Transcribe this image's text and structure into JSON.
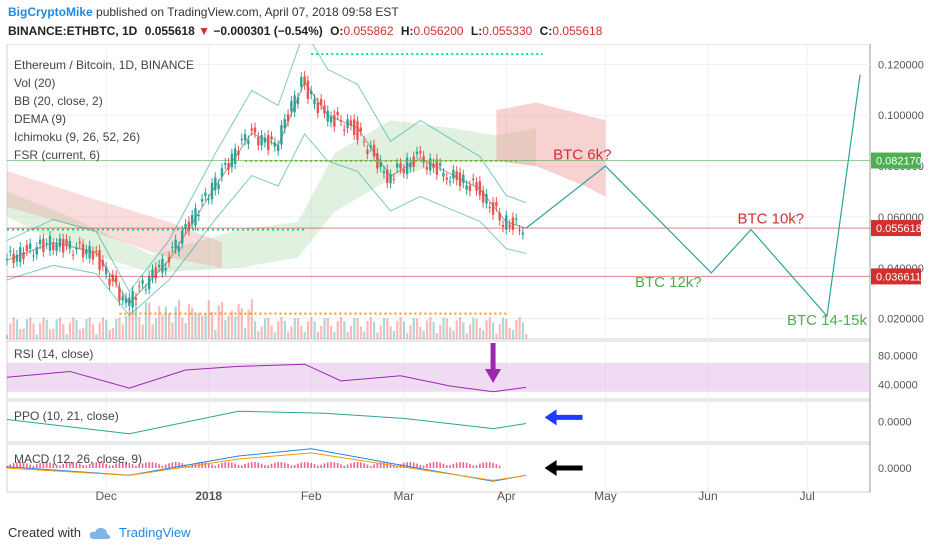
{
  "header": {
    "author": "BigCryptoMike",
    "published": "published on TradingView.com, April 07, 2018 09:58 EST",
    "symbol": "BINANCE:ETHBTC, 1D",
    "last": "0.055618",
    "change_arrow": "▼",
    "change": "−0.000301 (−0.54%)",
    "o_label": "O:",
    "o": "0.055862",
    "h_label": "H:",
    "h": "0.056200",
    "l_label": "L:",
    "l": "0.055330",
    "c_label": "C:",
    "c": "0.055618"
  },
  "indicators": [
    "Ethereum / Bitcoin, 1D, BINANCE",
    "Vol (20)",
    "BB (20, close, 2)",
    "DEMA (9)",
    "Ichimoku (9, 26, 52, 26)",
    "FSR (current, 6)"
  ],
  "footer": {
    "created_with": "Created with",
    "brand": "TradingView"
  },
  "colors": {
    "up": "#26a69a",
    "down": "#ef5350",
    "accent": "#1e88e5",
    "rsi": "#9c27b0"
  },
  "chart_data": {
    "type": "line",
    "symbol": "ETHBTC",
    "x_ticks": [
      "Dec",
      "2018",
      "Feb",
      "Mar",
      "Apr",
      "May",
      "Jun",
      "Jul"
    ],
    "y_ticks": [
      "0.120000",
      "0.100000",
      "0.080000",
      "0.060000",
      "0.040000",
      "0.020000"
    ],
    "ylim": [
      0.012,
      0.128
    ],
    "price_series": {
      "name": "ETHBTC",
      "dates": [
        "2017-11-01",
        "2017-11-15",
        "2017-11-28",
        "2017-12-08",
        "2017-12-20",
        "2018-01-03",
        "2018-01-14",
        "2018-01-22",
        "2018-01-30",
        "2018-02-06",
        "2018-02-15",
        "2018-02-25",
        "2018-03-06",
        "2018-03-15",
        "2018-03-24",
        "2018-04-01",
        "2018-04-07"
      ],
      "values": [
        0.043,
        0.05,
        0.046,
        0.026,
        0.043,
        0.072,
        0.093,
        0.088,
        0.113,
        0.1,
        0.095,
        0.076,
        0.083,
        0.077,
        0.071,
        0.058,
        0.0556
      ]
    },
    "horizontal_levels": [
      {
        "value": 0.08217,
        "label": "0.082170",
        "color": "#4caf50"
      },
      {
        "value": 0.055618,
        "label": "0.055618",
        "color": "#d32f2f"
      },
      {
        "value": 0.036611,
        "label": "0.036611",
        "color": "#d32f2f"
      }
    ],
    "projection": {
      "dates": [
        "2018-04-07",
        "2018-05-01",
        "2018-06-02",
        "2018-06-14",
        "2018-07-07",
        "2018-07-17"
      ],
      "values": [
        0.0556,
        0.08,
        0.038,
        0.055,
        0.021,
        0.116
      ]
    },
    "annotations": [
      {
        "text": "BTC 6k?",
        "date": "2018-04-24",
        "value": 0.0825,
        "color": "#d32f2f"
      },
      {
        "text": "BTC 10k?",
        "date": "2018-06-20",
        "value": 0.0575,
        "color": "#d32f2f"
      },
      {
        "text": "BTC 12k?",
        "date": "2018-05-20",
        "value": 0.0325,
        "color": "#4caf50"
      },
      {
        "text": "BTC 14-15k",
        "date": "2018-07-07",
        "value": 0.0175,
        "color": "#4caf50"
      }
    ],
    "rsi": {
      "label": "RSI (14, close)",
      "y_ticks": [
        "80.0000",
        "40.0000"
      ],
      "ylim": [
        20,
        100
      ],
      "band": [
        30,
        70
      ],
      "dates": [
        "2017-11-01",
        "2017-11-20",
        "2017-12-08",
        "2017-12-25",
        "2018-01-10",
        "2018-01-30",
        "2018-02-10",
        "2018-02-28",
        "2018-03-15",
        "2018-03-28",
        "2018-04-07"
      ],
      "values": [
        50,
        58,
        35,
        60,
        65,
        68,
        45,
        52,
        38,
        30,
        36
      ]
    },
    "ppo": {
      "label": "PPO (10, 21, close)",
      "y_ticks": [
        "0.0000"
      ],
      "ylim": [
        -1,
        1
      ],
      "dates": [
        "2017-11-01",
        "2017-12-08",
        "2018-01-10",
        "2018-02-05",
        "2018-03-01",
        "2018-03-28",
        "2018-04-07"
      ],
      "values": [
        0.1,
        -0.6,
        0.5,
        0.4,
        0.15,
        -0.35,
        -0.1
      ]
    },
    "macd": {
      "label": "MACD (12, 26, close, 9)",
      "y_ticks": [
        "0.0000"
      ],
      "ylim": [
        -1,
        1
      ],
      "dates": [
        "2017-11-01",
        "2017-12-08",
        "2018-01-10",
        "2018-02-01",
        "2018-03-01",
        "2018-03-28",
        "2018-04-07"
      ],
      "values": [
        0.05,
        -0.3,
        0.5,
        0.8,
        0.1,
        -0.55,
        -0.3
      ]
    }
  }
}
